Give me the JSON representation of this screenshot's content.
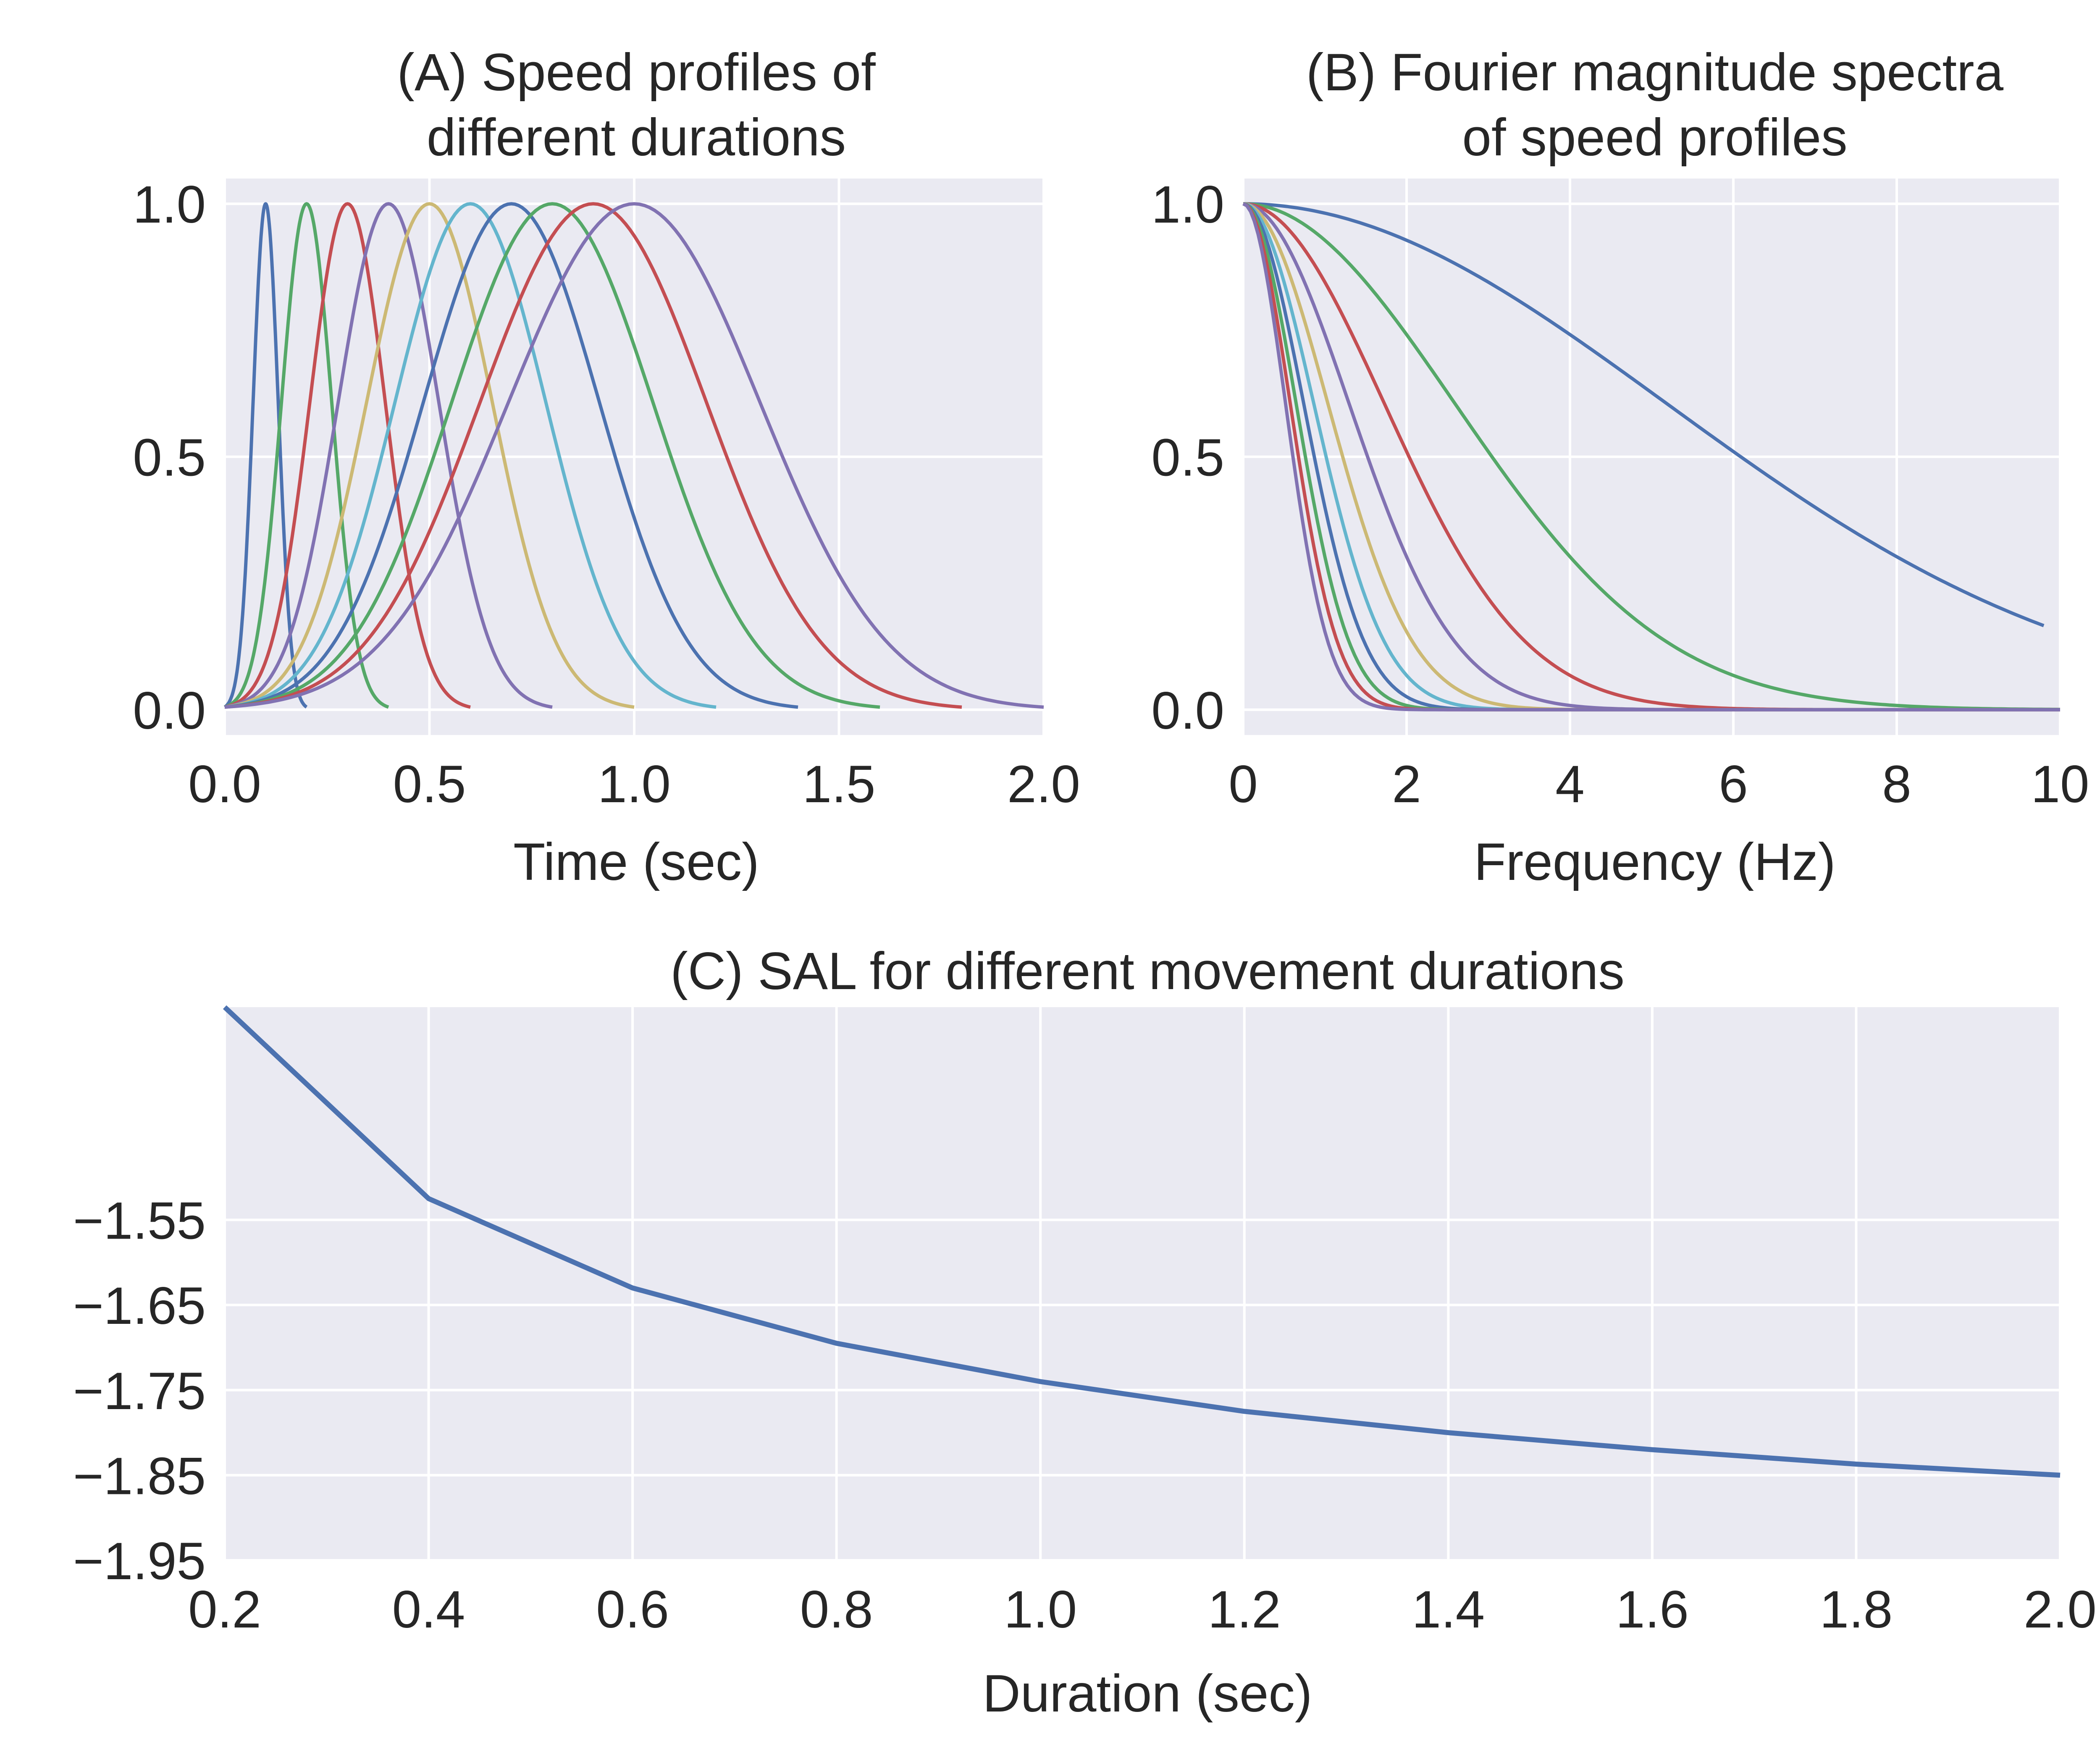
{
  "chart_data": [
    {
      "panel": "A",
      "type": "line",
      "title_lines": [
        "(A) Speed profiles of",
        "different durations"
      ],
      "xlabel": "Time (sec)",
      "ylabel": "",
      "xlim": [
        0.0,
        2.0
      ],
      "ylim": [
        -0.05,
        1.05
      ],
      "xticks": [
        "0.0",
        "0.5",
        "1.0",
        "1.5",
        "2.0"
      ],
      "yticks": [
        "0.0",
        "0.5",
        "1.0"
      ],
      "grid": true,
      "legend": "none",
      "curve": "gaussian speed profile, peak 1.0 at half of duration, spanning 0 to duration",
      "series": [
        {
          "duration": 0.2,
          "peak_time": 0.1,
          "color": "#4C72B0"
        },
        {
          "duration": 0.4,
          "peak_time": 0.2,
          "color": "#55A868"
        },
        {
          "duration": 0.6,
          "peak_time": 0.3,
          "color": "#C44E52"
        },
        {
          "duration": 0.8,
          "peak_time": 0.4,
          "color": "#8172B2"
        },
        {
          "duration": 1.0,
          "peak_time": 0.5,
          "color": "#CCB974"
        },
        {
          "duration": 1.2,
          "peak_time": 0.6,
          "color": "#64B5CD"
        },
        {
          "duration": 1.4,
          "peak_time": 0.7,
          "color": "#4C72B0"
        },
        {
          "duration": 1.6,
          "peak_time": 0.8,
          "color": "#55A868"
        },
        {
          "duration": 1.8,
          "peak_time": 0.9,
          "color": "#C44E52"
        },
        {
          "duration": 2.0,
          "peak_time": 1.0,
          "color": "#8172B2"
        }
      ]
    },
    {
      "panel": "B",
      "type": "line",
      "title_lines": [
        "(B) Fourier magnitude spectra",
        "of speed profiles"
      ],
      "xlabel": "Frequency (Hz)",
      "ylabel": "",
      "xlim": [
        0,
        10
      ],
      "ylim": [
        -0.05,
        1.05
      ],
      "xticks": [
        "0",
        "2",
        "4",
        "6",
        "8",
        "10"
      ],
      "yticks": [
        "0.0",
        "0.5",
        "1.0"
      ],
      "grid": true,
      "legend": "none",
      "series": [
        {
          "duration": 0.2,
          "color": "#4C72B0",
          "x_end": 9.8,
          "value_at_x_end": 0.22
        },
        {
          "duration": 0.4,
          "color": "#55A868",
          "x_end": 10,
          "value_at_x_end": 0.0
        },
        {
          "duration": 0.6,
          "color": "#C44E52",
          "x_end": 10,
          "value_at_x_end": 0.0
        },
        {
          "duration": 0.8,
          "color": "#8172B2",
          "x_end": 10,
          "value_at_x_end": 0.0
        },
        {
          "duration": 1.0,
          "color": "#CCB974",
          "x_end": 10,
          "value_at_x_end": 0.0
        },
        {
          "duration": 1.2,
          "color": "#64B5CD",
          "x_end": 10,
          "value_at_x_end": 0.0
        },
        {
          "duration": 1.4,
          "color": "#4C72B0",
          "x_end": 10,
          "value_at_x_end": 0.0
        },
        {
          "duration": 1.6,
          "color": "#55A868",
          "x_end": 10,
          "value_at_x_end": 0.0
        },
        {
          "duration": 1.8,
          "color": "#C44E52",
          "x_end": 10,
          "value_at_x_end": 0.0
        },
        {
          "duration": 2.0,
          "color": "#8172B2",
          "x_end": 10,
          "value_at_x_end": 0.0
        }
      ]
    },
    {
      "panel": "C",
      "type": "line",
      "title": "(C) SAL for different movement durations",
      "xlabel": "Duration (sec)",
      "ylabel": "",
      "xlim": [
        0.2,
        2.0
      ],
      "ylim": [
        -1.95,
        -1.3
      ],
      "xticks": [
        "0.2",
        "0.4",
        "0.6",
        "0.8",
        "1.0",
        "1.2",
        "1.4",
        "1.6",
        "1.8",
        "2.0"
      ],
      "yticks": [
        "−1.55",
        "−1.65",
        "−1.75",
        "−1.85",
        "−1.95"
      ],
      "ytick_values": [
        -1.55,
        -1.65,
        -1.75,
        -1.85,
        -1.95
      ],
      "grid": true,
      "legend": "none",
      "series": [
        {
          "color": "#4C72B0",
          "x": [
            0.2,
            0.4,
            0.6,
            0.8,
            1.0,
            1.2,
            1.4,
            1.6,
            1.8,
            2.0
          ],
          "values": [
            -1.3,
            -1.525,
            -1.63,
            -1.695,
            -1.74,
            -1.775,
            -1.8,
            -1.82,
            -1.837,
            -1.85
          ]
        }
      ]
    }
  ]
}
